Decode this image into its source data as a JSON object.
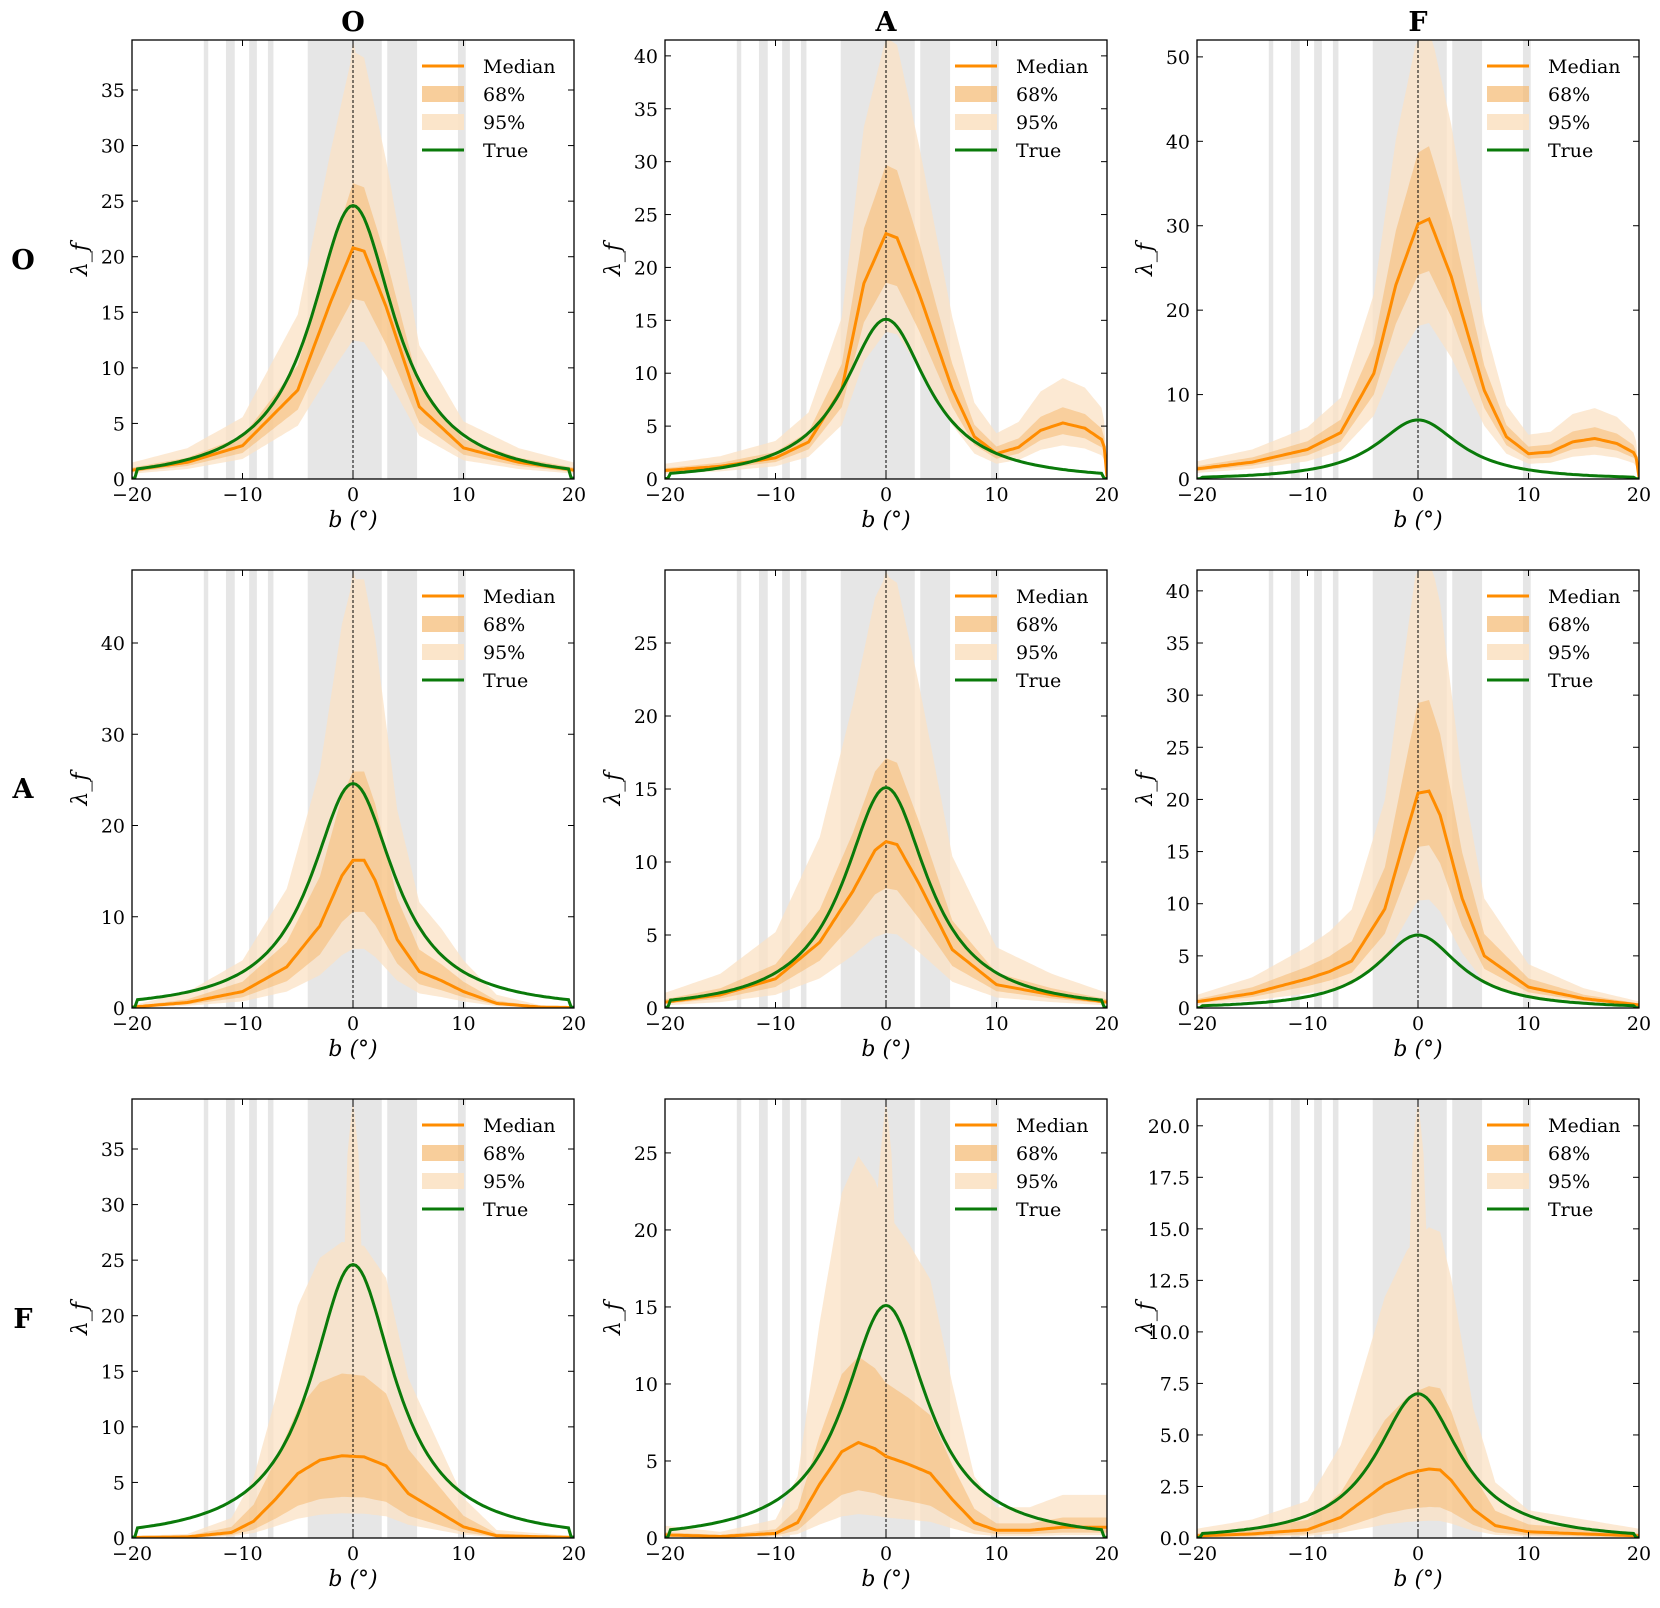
{
  "figure": {
    "col_titles": [
      "O",
      "A",
      "F"
    ],
    "row_titles": [
      "O",
      "A",
      "F"
    ],
    "xlabel": "b (°)",
    "ylabel": "λ_f",
    "x_ticks": [
      -20,
      -10,
      0,
      10,
      20
    ],
    "legend": [
      "Median",
      "68%",
      "95%",
      "True"
    ],
    "colors": {
      "median": "#ff8c00",
      "band68": "#f5b971",
      "band95": "#fbe2c4",
      "true": "#0a7a0a",
      "shade": "#e6e6e6",
      "zero_line": "#000000"
    },
    "masked_b_ranges": [
      [
        -13.5,
        -13.1
      ],
      [
        -11.5,
        -10.7
      ],
      [
        -9.4,
        -8.7
      ],
      [
        -7.7,
        -7.2
      ],
      [
        -4.1,
        2.6
      ],
      [
        3.1,
        5.8
      ],
      [
        9.5,
        10.2
      ]
    ]
  },
  "chart_data": [
    {
      "type": "line",
      "row": "O",
      "col": "O",
      "ylim": [
        0,
        39.5
      ],
      "yticks": [
        "0",
        "5",
        "10",
        "15",
        "20",
        "25",
        "30",
        "35"
      ],
      "true_peak": 24.6,
      "true_edge": 0.85,
      "median_points": [
        [
          -20,
          0.8
        ],
        [
          -15,
          1.5
        ],
        [
          -10,
          3.0
        ],
        [
          -5,
          8.0
        ],
        [
          -2,
          16.0
        ],
        [
          0,
          20.8
        ],
        [
          1,
          20.5
        ],
        [
          3,
          15.5
        ],
        [
          6,
          6.5
        ],
        [
          10,
          2.8
        ],
        [
          15,
          1.5
        ],
        [
          20,
          0.8
        ]
      ],
      "q68": [
        0.78,
        1.28
      ],
      "q95": [
        0.6,
        1.85
      ],
      "band_max": 39.5
    },
    {
      "type": "line",
      "row": "O",
      "col": "A",
      "ylim": [
        0,
        41.5
      ],
      "yticks": [
        "0",
        "5",
        "10",
        "15",
        "20",
        "25",
        "30",
        "35",
        "40"
      ],
      "true_peak": 15.1,
      "true_edge": 0.5,
      "median_points": [
        [
          -20,
          0.8
        ],
        [
          -15,
          1.2
        ],
        [
          -10,
          2.0
        ],
        [
          -7,
          3.5
        ],
        [
          -4,
          8.5
        ],
        [
          -2,
          18.5
        ],
        [
          0,
          23.2
        ],
        [
          1,
          22.8
        ],
        [
          3,
          17.5
        ],
        [
          6,
          8.5
        ],
        [
          8,
          4.0
        ],
        [
          10,
          2.4
        ],
        [
          12,
          3.0
        ],
        [
          14,
          4.6
        ],
        [
          16,
          5.3
        ],
        [
          18,
          4.8
        ],
        [
          19.7,
          3.6
        ],
        [
          20,
          0.2
        ]
      ],
      "q68": [
        0.8,
        1.28
      ],
      "q95": [
        0.6,
        1.8
      ],
      "band_max": 41.5
    },
    {
      "type": "line",
      "row": "O",
      "col": "F",
      "ylim": [
        0,
        52
      ],
      "yticks": [
        "0",
        "10",
        "20",
        "30",
        "40",
        "50"
      ],
      "true_peak": 7.0,
      "true_edge": 0.2,
      "median_points": [
        [
          -20,
          1.2
        ],
        [
          -15,
          2.0
        ],
        [
          -10,
          3.5
        ],
        [
          -7,
          5.5
        ],
        [
          -4,
          12.5
        ],
        [
          -2,
          23.0
        ],
        [
          0,
          30.2
        ],
        [
          1,
          30.8
        ],
        [
          3,
          24.0
        ],
        [
          6,
          10.5
        ],
        [
          8,
          5.0
        ],
        [
          10,
          3.0
        ],
        [
          12,
          3.2
        ],
        [
          14,
          4.4
        ],
        [
          16,
          4.8
        ],
        [
          18,
          4.2
        ],
        [
          19.7,
          3.0
        ],
        [
          20,
          0.2
        ]
      ],
      "q68": [
        0.8,
        1.28
      ],
      "q95": [
        0.6,
        1.75
      ],
      "band_max": 52
    },
    {
      "type": "line",
      "row": "A",
      "col": "O",
      "ylim": [
        0,
        48
      ],
      "yticks": [
        "0",
        "10",
        "20",
        "30",
        "40"
      ],
      "true_peak": 24.6,
      "true_edge": 0.85,
      "median_points": [
        [
          -20,
          0.1
        ],
        [
          -15,
          0.6
        ],
        [
          -10,
          1.8
        ],
        [
          -6,
          4.5
        ],
        [
          -3,
          9.0
        ],
        [
          -1,
          14.5
        ],
        [
          0,
          16.2
        ],
        [
          1,
          16.2
        ],
        [
          2,
          14.0
        ],
        [
          4,
          7.5
        ],
        [
          6,
          4.0
        ],
        [
          8,
          3.0
        ],
        [
          10,
          1.8
        ],
        [
          13,
          0.5
        ],
        [
          17,
          0.1
        ],
        [
          20,
          0.05
        ]
      ],
      "q68": [
        0.65,
        1.6
      ],
      "q95": [
        0.4,
        2.9
      ],
      "band_max": 48
    },
    {
      "type": "line",
      "row": "A",
      "col": "A",
      "ylim": [
        0,
        30
      ],
      "yticks": [
        "0",
        "5",
        "10",
        "15",
        "20",
        "25"
      ],
      "true_peak": 15.1,
      "true_edge": 0.5,
      "median_points": [
        [
          -20,
          0.4
        ],
        [
          -15,
          0.9
        ],
        [
          -10,
          2.0
        ],
        [
          -6,
          4.5
        ],
        [
          -3,
          8.0
        ],
        [
          -1,
          10.8
        ],
        [
          0,
          11.4
        ],
        [
          1,
          11.2
        ],
        [
          3,
          8.5
        ],
        [
          6,
          4.0
        ],
        [
          10,
          1.6
        ],
        [
          15,
          0.9
        ],
        [
          20,
          0.4
        ]
      ],
      "q68": [
        0.72,
        1.5
      ],
      "q95": [
        0.45,
        2.6
      ],
      "band_max": 30
    },
    {
      "type": "line",
      "row": "A",
      "col": "F",
      "ylim": [
        0,
        42
      ],
      "yticks": [
        "0",
        "5",
        "10",
        "15",
        "20",
        "25",
        "30",
        "35",
        "40"
      ],
      "true_peak": 7.0,
      "true_edge": 0.2,
      "median_points": [
        [
          -20,
          0.6
        ],
        [
          -15,
          1.4
        ],
        [
          -10,
          2.8
        ],
        [
          -8,
          3.5
        ],
        [
          -6,
          4.5
        ],
        [
          -3,
          9.5
        ],
        [
          -1,
          17.0
        ],
        [
          0,
          20.6
        ],
        [
          1,
          20.8
        ],
        [
          2,
          18.5
        ],
        [
          4,
          10.5
        ],
        [
          6,
          5.0
        ],
        [
          10,
          2.0
        ],
        [
          15,
          0.9
        ],
        [
          20,
          0.3
        ]
      ],
      "q68": [
        0.75,
        1.42
      ],
      "q95": [
        0.5,
        2.1
      ],
      "band_max": 42
    },
    {
      "type": "line",
      "row": "F",
      "col": "O",
      "ylim": [
        0,
        39.5
      ],
      "yticks": [
        "0",
        "5",
        "10",
        "15",
        "20",
        "25",
        "30",
        "35"
      ],
      "true_peak": 24.6,
      "true_edge": 0.85,
      "median_points": [
        [
          -20,
          0.05
        ],
        [
          -15,
          0.1
        ],
        [
          -11,
          0.5
        ],
        [
          -9,
          1.5
        ],
        [
          -7,
          3.5
        ],
        [
          -5,
          5.8
        ],
        [
          -3,
          7.0
        ],
        [
          -1,
          7.4
        ],
        [
          1,
          7.3
        ],
        [
          3,
          6.5
        ],
        [
          5,
          4.0
        ],
        [
          7,
          2.8
        ],
        [
          10,
          1.0
        ],
        [
          13,
          0.2
        ],
        [
          20,
          0.05
        ]
      ],
      "q68": [
        0.5,
        2.0
      ],
      "q95": [
        0.3,
        3.6
      ],
      "band_max": 39.5
    },
    {
      "type": "line",
      "row": "F",
      "col": "A",
      "ylim": [
        0,
        28.5
      ],
      "yticks": [
        "0",
        "5",
        "10",
        "15",
        "20",
        "25"
      ],
      "true_peak": 15.1,
      "true_edge": 0.5,
      "median_points": [
        [
          -20,
          0.2
        ],
        [
          -15,
          0.1
        ],
        [
          -10,
          0.3
        ],
        [
          -8,
          1.0
        ],
        [
          -6,
          3.5
        ],
        [
          -4,
          5.6
        ],
        [
          -2.5,
          6.2
        ],
        [
          -1,
          5.8
        ],
        [
          0,
          5.3
        ],
        [
          2,
          4.8
        ],
        [
          4,
          4.2
        ],
        [
          6,
          2.5
        ],
        [
          8,
          1.0
        ],
        [
          10,
          0.5
        ],
        [
          13,
          0.5
        ],
        [
          16,
          0.7
        ],
        [
          20,
          0.7
        ]
      ],
      "q68": [
        0.5,
        1.9
      ],
      "q95": [
        0.25,
        4.0
      ],
      "band_max": 28.5
    },
    {
      "type": "line",
      "row": "F",
      "col": "F",
      "ylim": [
        0,
        21.3
      ],
      "yticks": [
        "0.0",
        "2.5",
        "5.0",
        "7.5",
        "10.0",
        "12.5",
        "15.0",
        "17.5",
        "20.0"
      ],
      "true_peak": 7.0,
      "true_edge": 0.2,
      "median_points": [
        [
          -20,
          0.1
        ],
        [
          -15,
          0.2
        ],
        [
          -10,
          0.4
        ],
        [
          -7,
          1.0
        ],
        [
          -5,
          1.8
        ],
        [
          -3,
          2.6
        ],
        [
          -1,
          3.1
        ],
        [
          0,
          3.25
        ],
        [
          1,
          3.35
        ],
        [
          2,
          3.3
        ],
        [
          3,
          2.8
        ],
        [
          5,
          1.4
        ],
        [
          7,
          0.6
        ],
        [
          10,
          0.3
        ],
        [
          15,
          0.2
        ],
        [
          20,
          0.1
        ]
      ],
      "q68": [
        0.45,
        2.2
      ],
      "q95": [
        0.25,
        4.5
      ],
      "band_max": 21.3
    }
  ]
}
